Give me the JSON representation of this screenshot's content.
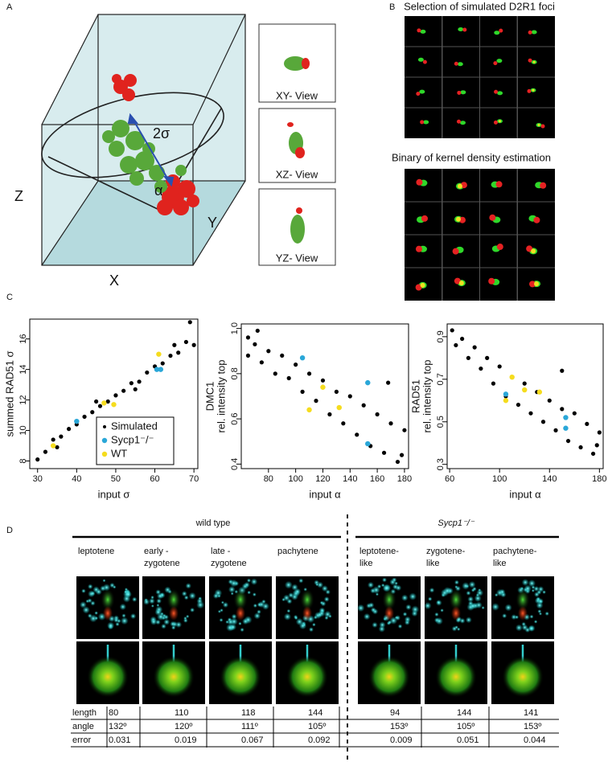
{
  "panel_a": {
    "label": "A",
    "axes": {
      "z": "Z",
      "y": "Y",
      "x": "X"
    },
    "annotations": [
      "2σ",
      "α"
    ],
    "views": [
      "XY- View",
      "XZ- View",
      "YZ- View"
    ]
  },
  "panel_b": {
    "label": "B",
    "titles": [
      "Selection of simulated D2R1 foci",
      "Binary of kernel density estimation"
    ]
  },
  "panel_c": {
    "label": "C"
  },
  "chart_data": [
    {
      "type": "scatter",
      "xlabel": "input σ",
      "ylabel": [
        "summed RAD51 σ"
      ],
      "xlim": [
        28,
        71
      ],
      "ylim": [
        7.5,
        17.3
      ],
      "xticks": [
        30,
        40,
        50,
        60,
        70
      ],
      "yticks": [
        8,
        10,
        12,
        14,
        16
      ],
      "legend": "lower right",
      "series": [
        {
          "name": "Simulated",
          "color": "#000000",
          "x": [
            30,
            32,
            34,
            36,
            38,
            40,
            42,
            44,
            46,
            48,
            50,
            52,
            54,
            56,
            58,
            60,
            62,
            64,
            66,
            68,
            70,
            35,
            45,
            55,
            65,
            69
          ],
          "values": [
            8.1,
            8.6,
            9.4,
            9.6,
            10.1,
            10.4,
            10.9,
            11.2,
            11.6,
            11.9,
            12.3,
            12.6,
            13.1,
            13.2,
            13.8,
            14.2,
            14.4,
            14.9,
            15.1,
            15.8,
            15.6,
            8.9,
            11.9,
            12.7,
            15.6,
            17.1
          ]
        },
        {
          "name": "Sycp1⁻/⁻",
          "color": "#2aa7d8",
          "x": [
            40,
            60.5,
            61.5
          ],
          "values": [
            10.6,
            14,
            14
          ]
        },
        {
          "name": "WT",
          "color": "#f5dc1e",
          "x": [
            34,
            47,
            49.5,
            61
          ],
          "values": [
            9,
            11.8,
            11.7,
            15
          ]
        }
      ]
    },
    {
      "type": "scatter",
      "xlabel": "input α",
      "ylabel": [
        "DMC1",
        "rel. intensity top"
      ],
      "xlim": [
        60,
        183
      ],
      "ylim": [
        0.38,
        1.02
      ],
      "xticks": [
        80,
        100,
        120,
        140,
        160,
        180
      ],
      "yticks": [
        0.4,
        0.6,
        0.8,
        {
          "value": 1,
          "label": "1.0"
        }
      ],
      "series": [
        {
          "color": "#000000",
          "x": [
            65,
            65,
            70,
            75,
            80,
            85,
            90,
            95,
            100,
            105,
            110,
            115,
            120,
            125,
            130,
            135,
            140,
            145,
            150,
            155,
            160,
            165,
            170,
            175,
            180,
            178,
            168,
            72
          ],
          "values": [
            0.96,
            0.88,
            0.93,
            0.85,
            0.9,
            0.8,
            0.88,
            0.78,
            0.84,
            0.72,
            0.8,
            0.68,
            0.77,
            0.62,
            0.72,
            0.58,
            0.7,
            0.53,
            0.66,
            0.48,
            0.62,
            0.45,
            0.58,
            0.41,
            0.55,
            0.44,
            0.76,
            0.99
          ]
        },
        {
          "color": "#2aa7d8",
          "x": [
            105,
            153,
            153
          ],
          "values": [
            0.87,
            0.76,
            0.49
          ]
        },
        {
          "color": "#f5dc1e",
          "x": [
            120,
            110,
            132
          ],
          "values": [
            0.74,
            0.64,
            0.65
          ]
        }
      ]
    },
    {
      "type": "scatter",
      "xlabel": "input α",
      "ylabel": [
        "RAD51",
        "rel. intensity top"
      ],
      "xlim": [
        58,
        183
      ],
      "ylim": [
        0.28,
        0.96
      ],
      "xticks": [
        60,
        100,
        140,
        180
      ],
      "yticks": [
        0.3,
        0.5,
        0.7,
        0.9
      ],
      "series": [
        {
          "color": "#000000",
          "x": [
            62,
            65,
            70,
            75,
            80,
            85,
            90,
            95,
            100,
            105,
            110,
            115,
            120,
            125,
            130,
            135,
            140,
            145,
            150,
            155,
            160,
            165,
            170,
            175,
            180,
            178,
            150
          ],
          "values": [
            0.93,
            0.86,
            0.89,
            0.8,
            0.85,
            0.75,
            0.8,
            0.68,
            0.76,
            0.62,
            0.71,
            0.58,
            0.68,
            0.54,
            0.64,
            0.5,
            0.6,
            0.46,
            0.56,
            0.41,
            0.54,
            0.38,
            0.49,
            0.35,
            0.45,
            0.39,
            0.74
          ]
        },
        {
          "color": "#2aa7d8",
          "x": [
            105,
            153,
            153
          ],
          "values": [
            0.63,
            0.52,
            0.47
          ]
        },
        {
          "color": "#f5dc1e",
          "x": [
            105,
            110,
            120,
            132
          ],
          "values": [
            0.6,
            0.71,
            0.65,
            0.64
          ]
        }
      ]
    }
  ],
  "panel_d": {
    "label": "D",
    "groups": [
      "wild type",
      "Sycp1⁻/⁻"
    ],
    "stages": [
      [
        "leptotene"
      ],
      [
        "early -",
        "zygotene"
      ],
      [
        "late -",
        "zygotene"
      ],
      [
        "pachytene"
      ],
      [
        "leptotene-",
        "like"
      ],
      [
        "zygotene-",
        "like"
      ],
      [
        "pachytene-",
        "like"
      ]
    ],
    "table": {
      "rows": [
        [
          "length",
          "80",
          "110",
          "118",
          "144",
          "94",
          "144",
          "141"
        ],
        [
          "angle",
          "132º",
          "120º",
          "111º",
          "105º",
          "153º",
          "105º",
          "153º"
        ],
        [
          "error",
          "0.031",
          "0.019",
          "0.067",
          "0.092",
          "0.009",
          "0.051",
          "0.044"
        ]
      ]
    }
  }
}
